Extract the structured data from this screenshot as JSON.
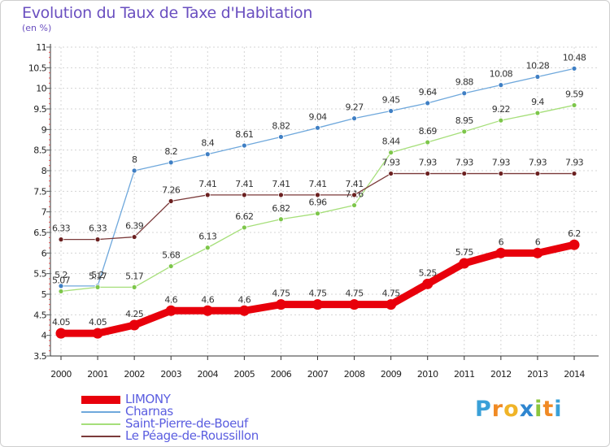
{
  "header": {
    "title": "Evolution du Taux de Taxe d'Habitation",
    "subtitle": "(en %)"
  },
  "brand": {
    "letters": [
      "P",
      "r",
      "o",
      "x",
      "i",
      "t",
      "i"
    ],
    "colors": [
      "#3aa0d8",
      "#f08a24",
      "#f0b428",
      "#2f86d0",
      "#8cc63e",
      "#f08a24",
      "#3aa0d8"
    ]
  },
  "chart_data": {
    "type": "line",
    "title": "Evolution du Taux de Taxe d'Habitation",
    "ylabel": "(en %)",
    "x": [
      "2000",
      "2001",
      "2002",
      "2003",
      "2004",
      "2005",
      "2006",
      "2007",
      "2008",
      "2009",
      "2010",
      "2011",
      "2012",
      "2013",
      "2014"
    ],
    "ylim": [
      3.5,
      11
    ],
    "yticks": [
      "3.5",
      "4",
      "4.5",
      "5",
      "5.5",
      "6",
      "6.5",
      "7",
      "7.5",
      "8",
      "8.5",
      "9",
      "9.5",
      "10",
      "10.5",
      "11"
    ],
    "grid": true,
    "legend_position": "bottom-left",
    "series": [
      {
        "name": "LIMONY",
        "color": "#e8000b",
        "emphasis": true,
        "values": [
          4.05,
          4.05,
          4.25,
          4.6,
          4.6,
          4.6,
          4.75,
          4.75,
          4.75,
          4.75,
          5.25,
          5.75,
          6,
          6,
          6.2
        ],
        "labels": [
          "4.05",
          "4.05",
          "4.25",
          "4.6",
          "4.6",
          "4.6",
          "4.75",
          "4.75",
          "4.75",
          "4.75",
          "5.25",
          "5.75",
          "6",
          "6",
          "6.2"
        ]
      },
      {
        "name": "Charnas",
        "color": "#6fa8dc",
        "marker": "#3f7fc4",
        "values": [
          5.2,
          5.2,
          8,
          8.2,
          8.4,
          8.61,
          8.82,
          9.04,
          9.27,
          9.45,
          9.64,
          9.88,
          10.08,
          10.28,
          10.48
        ],
        "labels": [
          "5.2",
          "5.2",
          "8",
          "8.2",
          "8.4",
          "8.61",
          "8.82",
          "9.04",
          "9.27",
          "9.45",
          "9.64",
          "9.88",
          "10.08",
          "10.28",
          "10.48"
        ]
      },
      {
        "name": "Saint-Pierre-de-Boeuf",
        "color": "#a6df7a",
        "marker": "#7dc64a",
        "values": [
          5.07,
          5.17,
          5.17,
          5.68,
          6.13,
          6.62,
          6.82,
          6.96,
          7.16,
          8.44,
          8.69,
          8.95,
          9.22,
          9.4,
          9.59
        ],
        "labels": [
          "5.07",
          "5.17",
          "5.17",
          "5.68",
          "6.13",
          "6.62",
          "6.82",
          "6.96",
          "7.16",
          "8.44",
          "8.69",
          "8.95",
          "9.22",
          "9.4",
          "9.59"
        ]
      },
      {
        "name": "Le Péage-de-Roussillon",
        "color": "#7b3a3a",
        "marker": "#6b2020",
        "values": [
          6.33,
          6.33,
          6.39,
          7.26,
          7.41,
          7.41,
          7.41,
          7.41,
          7.41,
          7.93,
          7.93,
          7.93,
          7.93,
          7.93,
          7.93
        ],
        "labels": [
          "6.33",
          "6.33",
          "6.39",
          "7.26",
          "7.41",
          "7.41",
          "7.41",
          "7.41",
          "7.41",
          "7.93",
          "7.93",
          "7.93",
          "7.93",
          "7.93",
          "7.93"
        ]
      }
    ]
  }
}
